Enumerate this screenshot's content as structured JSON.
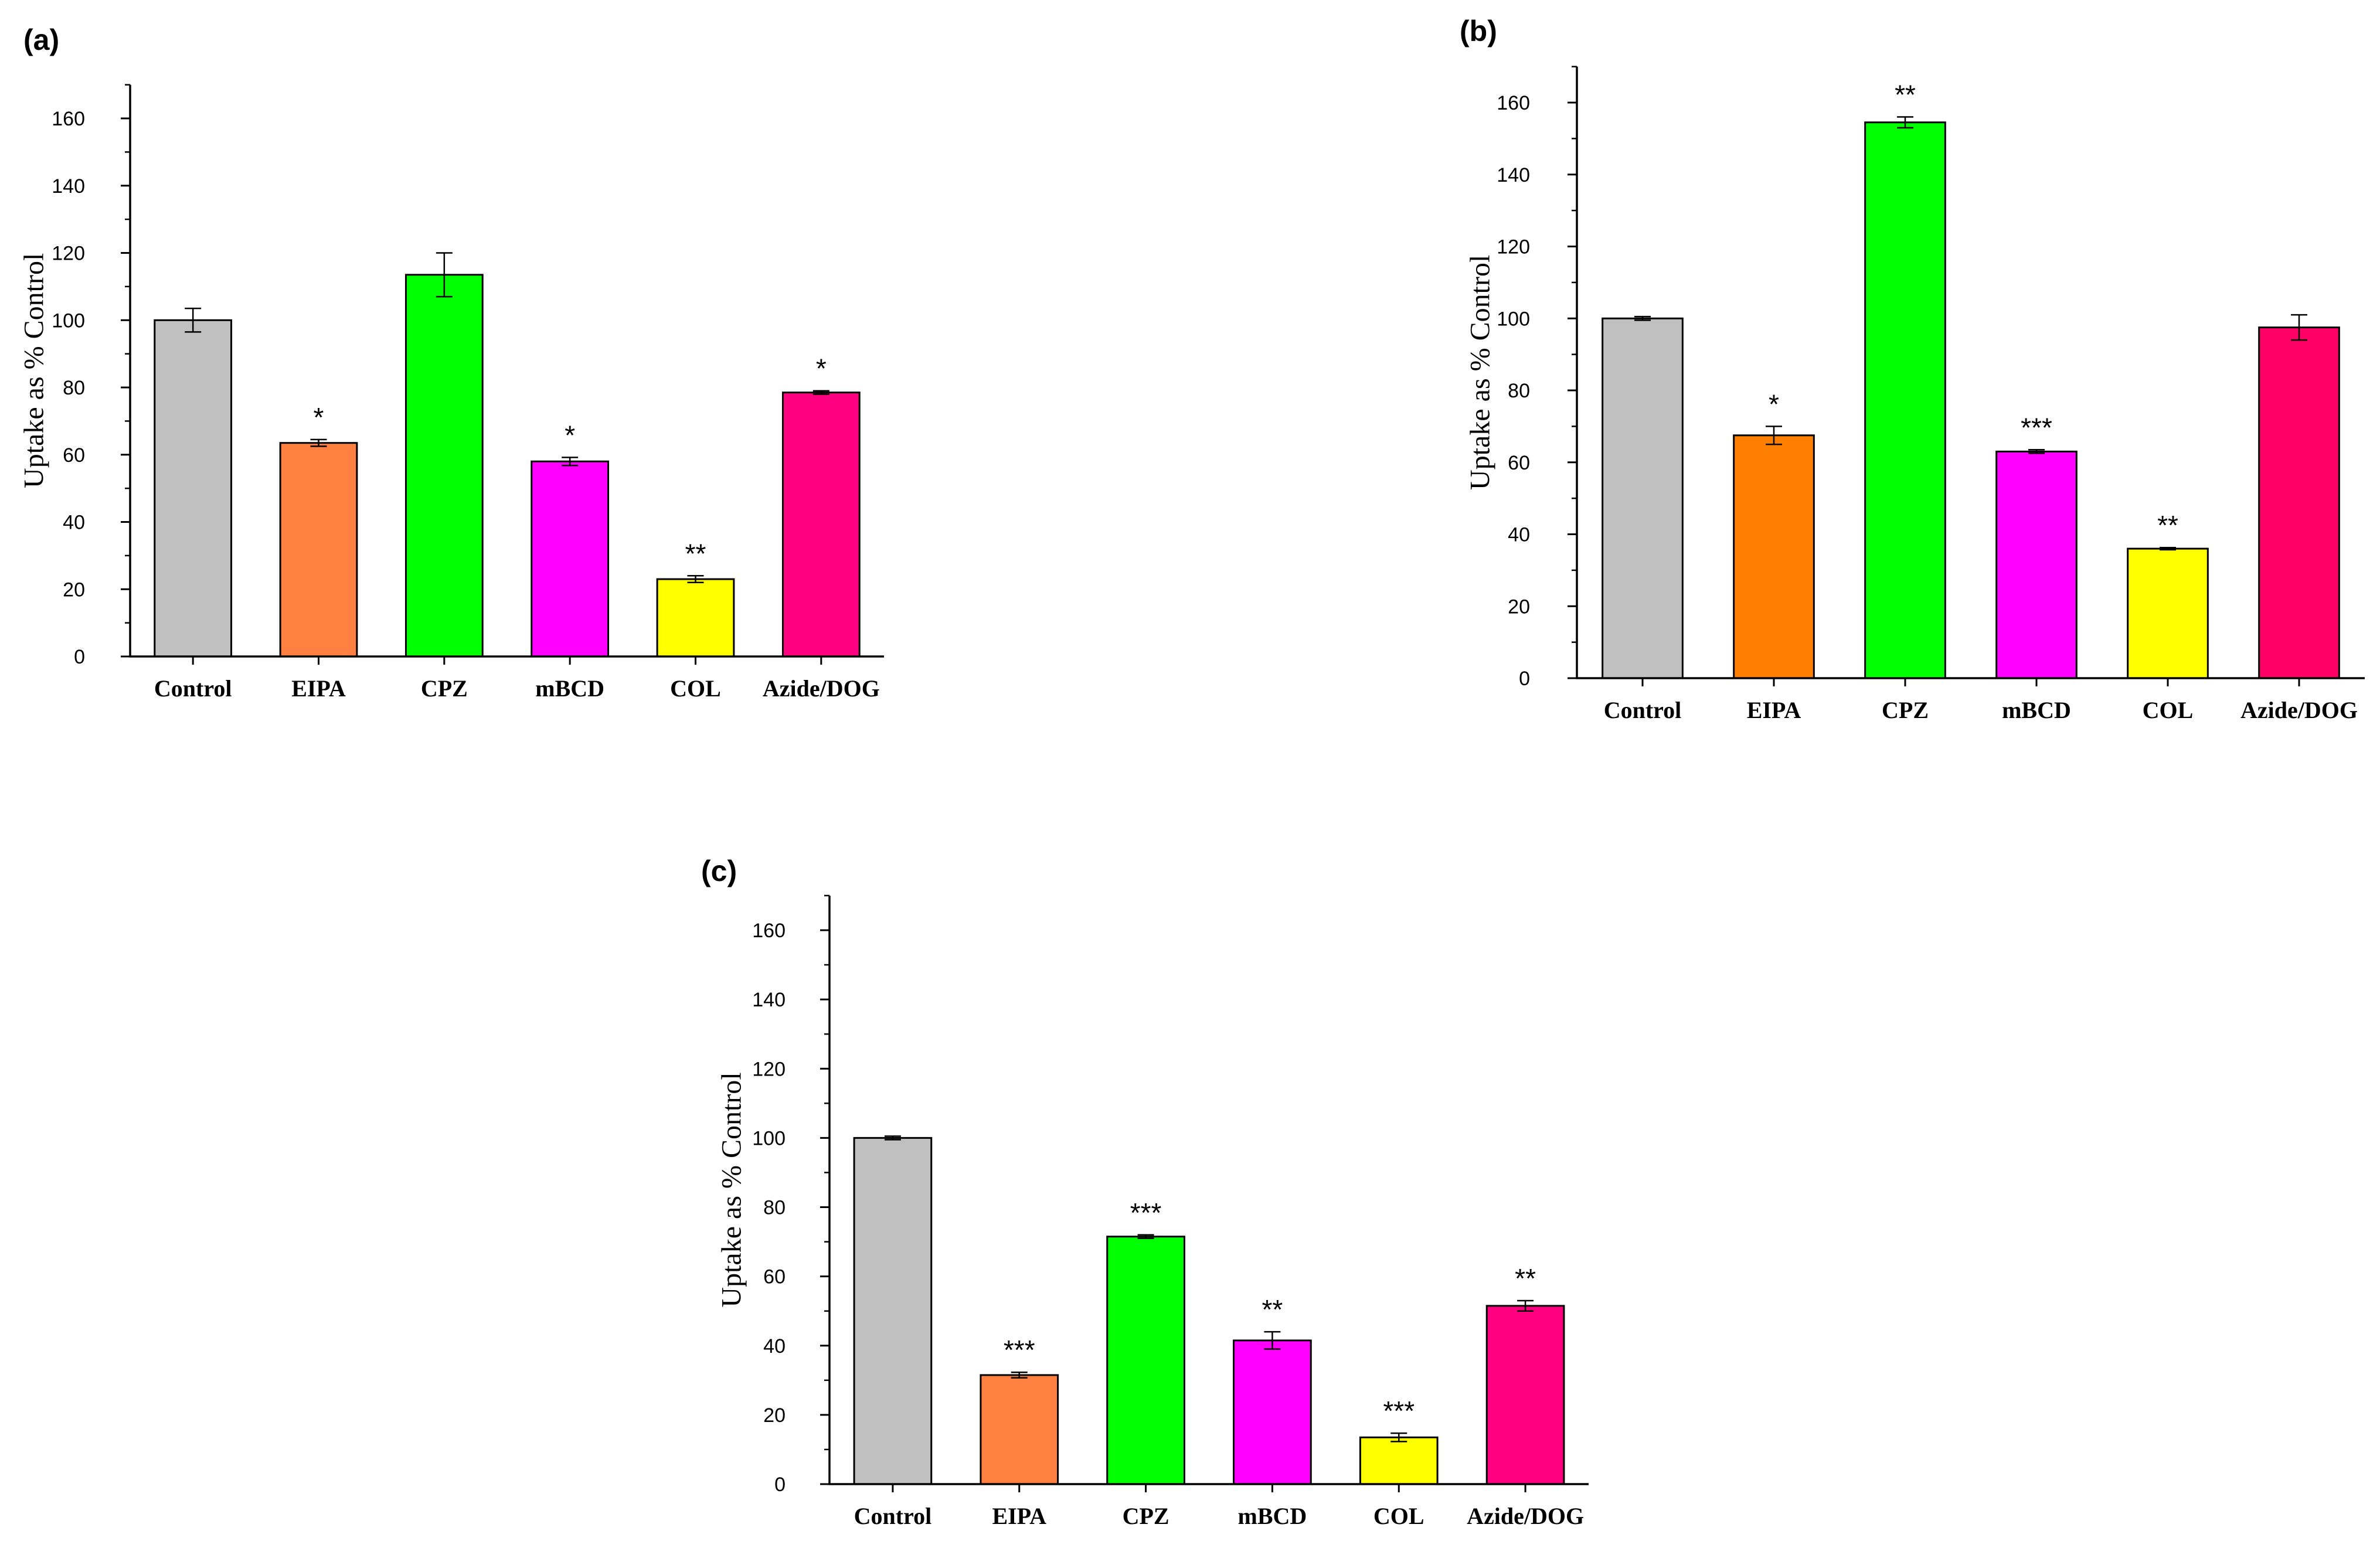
{
  "figure": {
    "panels": [
      "(a)",
      "(b)",
      "(c)"
    ]
  },
  "chart_data": [
    {
      "type": "bar",
      "panel": "(a)",
      "title": "",
      "xlabel": "",
      "ylabel": "Uptake as % Control",
      "ylim": [
        0,
        170
      ],
      "yticks": [
        0,
        20,
        40,
        60,
        80,
        100,
        120,
        140,
        160
      ],
      "categories": [
        "Control",
        "EIPA",
        "CPZ",
        "mBCD",
        "COL",
        "Azide/DOG"
      ],
      "values": [
        100,
        63.5,
        113.5,
        58,
        23,
        78.5
      ],
      "errors": [
        3.5,
        1,
        6.5,
        1.2,
        1,
        0.5
      ],
      "significance": [
        "",
        "*",
        "",
        "*",
        "**",
        "*"
      ],
      "colors": [
        "#c0c0c0",
        "#ff8040",
        "#00ff00",
        "#ff00ff",
        "#ffff00",
        "#ff0080"
      ]
    },
    {
      "type": "bar",
      "panel": "(b)",
      "title": "",
      "xlabel": "",
      "ylabel": "Uptake as % Control",
      "ylim": [
        0,
        170
      ],
      "yticks": [
        0,
        20,
        40,
        60,
        80,
        100,
        120,
        140,
        160
      ],
      "categories": [
        "Control",
        "EIPA",
        "CPZ",
        "mBCD",
        "COL",
        "Azide/DOG"
      ],
      "values": [
        100,
        67.5,
        154.5,
        63,
        36,
        97.5
      ],
      "errors": [
        0.5,
        2.5,
        1.5,
        0.5,
        0.3,
        3.5
      ],
      "significance": [
        "",
        "*",
        "**",
        "***",
        "**",
        ""
      ],
      "colors": [
        "#c0c0c0",
        "#ff8000",
        "#00ff00",
        "#ff00ff",
        "#ffff00",
        "#ff0066"
      ]
    },
    {
      "type": "bar",
      "panel": "(c)",
      "title": "",
      "xlabel": "",
      "ylabel": "Uptake as % Control",
      "ylim": [
        0,
        170
      ],
      "yticks": [
        0,
        20,
        40,
        60,
        80,
        100,
        120,
        140,
        160
      ],
      "categories": [
        "Control",
        "EIPA",
        "CPZ",
        "mBCD",
        "COL",
        "Azide/DOG"
      ],
      "values": [
        100,
        31.5,
        71.5,
        41.5,
        13.5,
        51.5
      ],
      "errors": [
        0.5,
        0.8,
        0.5,
        2.5,
        1.2,
        1.5
      ],
      "significance": [
        "",
        "***",
        "***",
        "**",
        "***",
        "**"
      ],
      "colors": [
        "#c0c0c0",
        "#ff8040",
        "#00ff00",
        "#ff00ff",
        "#ffff00",
        "#ff0080"
      ]
    }
  ]
}
